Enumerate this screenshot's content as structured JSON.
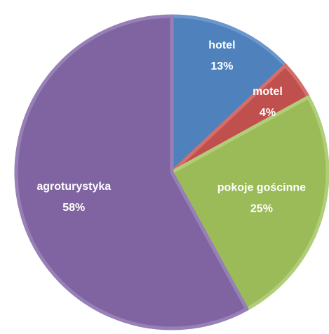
{
  "chart_data": {
    "type": "pie",
    "categories": [
      "hotel",
      "motel",
      "pokoje gościnne",
      "agroturystyka"
    ],
    "values": [
      13,
      4,
      25,
      58
    ],
    "value_labels": [
      "13%",
      "4%",
      "25%",
      "58%"
    ],
    "colors": [
      "#4f81bd",
      "#c0504d",
      "#9bbb59",
      "#8064a2"
    ],
    "border_colors": [
      "#6b97cc",
      "#d46e6b",
      "#b1cd78",
      "#9680b6"
    ]
  }
}
